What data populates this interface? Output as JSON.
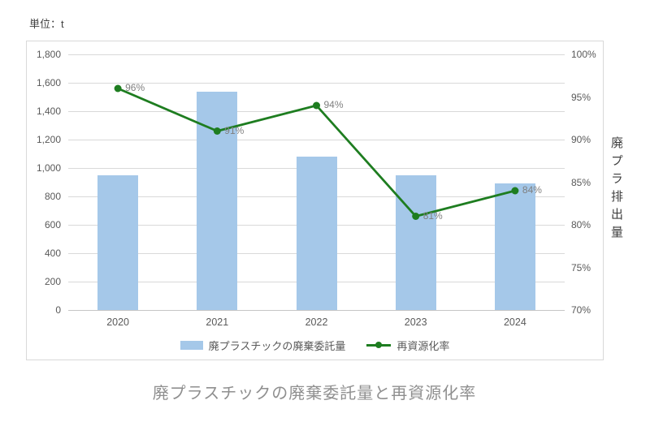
{
  "unit_label": "単位：t",
  "title": "廃プラスチックの廃棄委託量と再資源化率",
  "right_axis_title": "廃プラ排出量",
  "legend": {
    "bar_label": "廃プラスチックの廃棄委託量",
    "line_label": "再資源化率"
  },
  "colors": {
    "bar": "#A5C8E9",
    "line": "#1E7D20",
    "grid": "#D9D9D9",
    "axis_text": "#595959",
    "point_label": "#7F7F7F",
    "border": "#D9D9D9",
    "title_text": "#8F8F8F"
  },
  "chart_data": {
    "type": "combo-bar-line",
    "categories": [
      "2020",
      "2021",
      "2022",
      "2023",
      "2024"
    ],
    "series": [
      {
        "name": "廃プラスチックの廃棄委託量",
        "type": "bar",
        "axis": "left",
        "values": [
          950,
          1540,
          1080,
          950,
          890
        ]
      },
      {
        "name": "再資源化率",
        "type": "line",
        "axis": "right",
        "values": [
          96,
          91,
          94,
          81,
          84
        ],
        "labels": [
          "96%",
          "91%",
          "94%",
          "81%",
          "84%"
        ]
      }
    ],
    "left_axis": {
      "min": 0,
      "max": 1800,
      "step": 200,
      "tick_labels": [
        "0",
        "200",
        "400",
        "600",
        "800",
        "1,000",
        "1,200",
        "1,400",
        "1,600",
        "1,800"
      ]
    },
    "right_axis": {
      "min": 70,
      "max": 100,
      "step": 5,
      "tick_labels": [
        "70%",
        "75%",
        "80%",
        "85%",
        "90%",
        "95%",
        "100%"
      ]
    },
    "grid": true,
    "legend_position": "bottom"
  }
}
